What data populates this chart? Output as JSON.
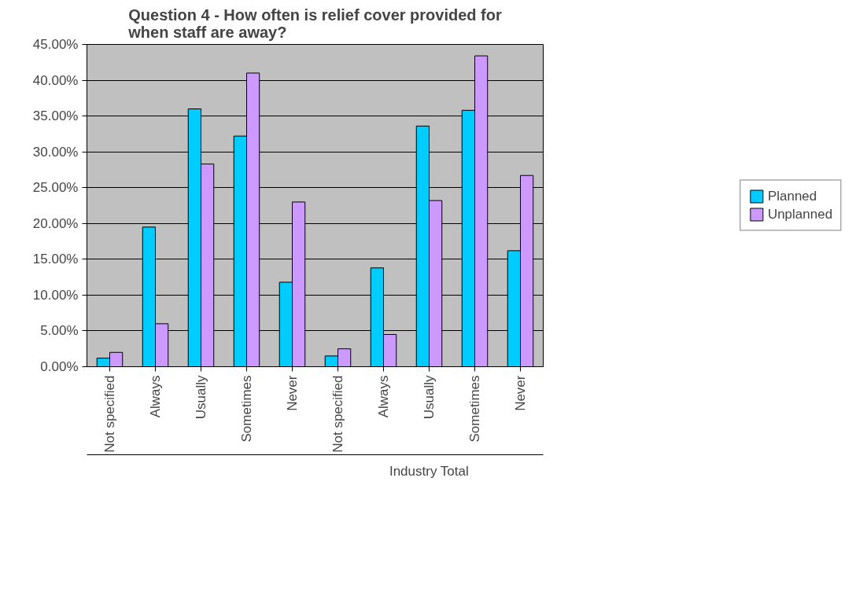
{
  "chart_data": {
    "type": "bar",
    "title": "Question 4 - How often is relief cover provided for when staff are away?",
    "categories": [
      "Not specified",
      "Always",
      "Usually",
      "Sometimes",
      "Never",
      "Not specified",
      "Always",
      "Usually",
      "Sometimes",
      "Never"
    ],
    "series": [
      {
        "name": "Planned",
        "color": "#00ccff",
        "values": [
          1.2,
          19.5,
          36.0,
          32.2,
          11.8,
          1.5,
          13.8,
          33.6,
          35.8,
          16.2
        ]
      },
      {
        "name": "Unplanned",
        "color": "#cc99ff",
        "values": [
          2.0,
          6.0,
          28.3,
          41.0,
          23.0,
          2.5,
          4.5,
          23.2,
          43.4,
          26.7
        ]
      }
    ],
    "ylim": [
      0,
      45
    ],
    "yticks": [
      {
        "value": 0,
        "label": "0.00%"
      },
      {
        "value": 5,
        "label": "5.00%"
      },
      {
        "value": 10,
        "label": "10.00%"
      },
      {
        "value": 15,
        "label": "15.00%"
      },
      {
        "value": 20,
        "label": "20.00%"
      },
      {
        "value": 25,
        "label": "25.00%"
      },
      {
        "value": 30,
        "label": "30.00%"
      },
      {
        "value": 35,
        "label": "35.00%"
      },
      {
        "value": 40,
        "label": "40.00%"
      },
      {
        "value": 45,
        "label": "45.00%"
      }
    ],
    "grid": "y",
    "legend": "right",
    "annotations": [
      "Industry Total"
    ]
  }
}
